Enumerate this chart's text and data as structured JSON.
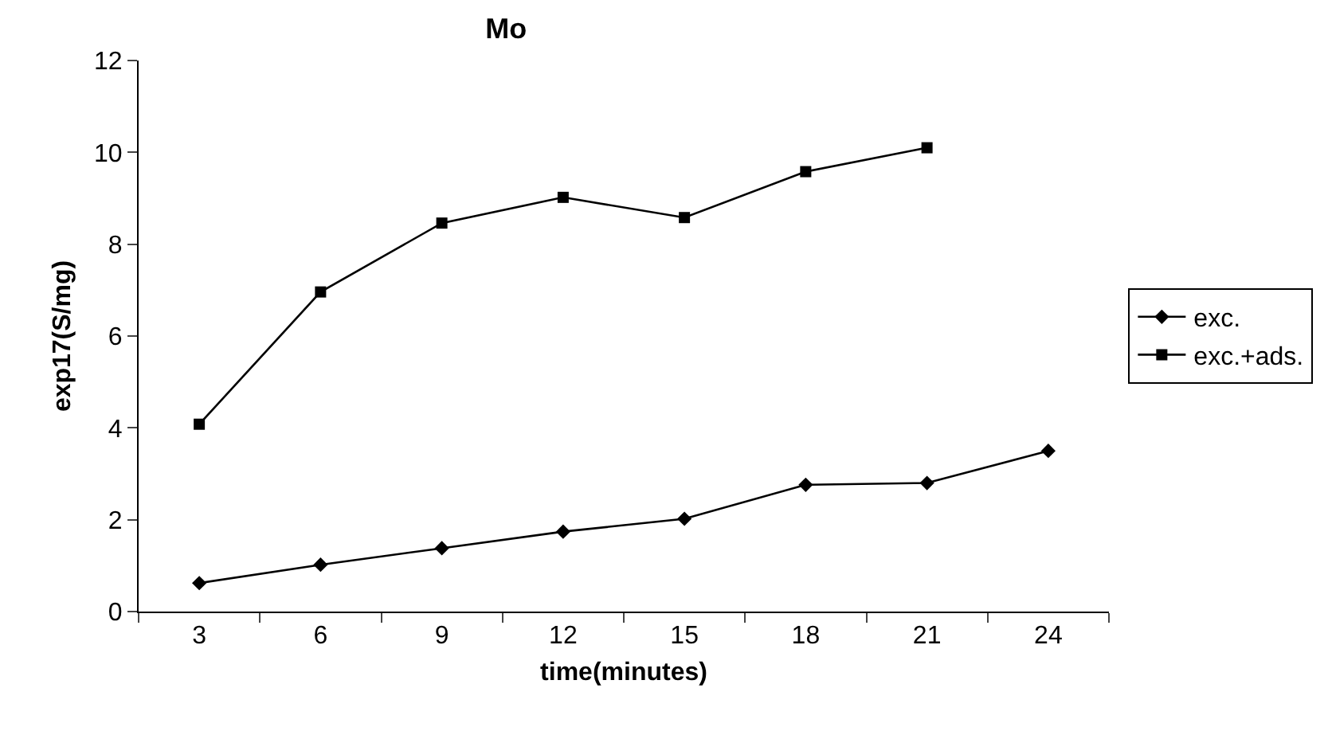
{
  "chart_data": {
    "type": "line",
    "title": "Mo",
    "xlabel": "time(minutes)",
    "ylabel": "exp17(S/mg)",
    "categories": [
      "3",
      "6",
      "9",
      "12",
      "15",
      "18",
      "21",
      "24"
    ],
    "series": [
      {
        "name": "exc.",
        "color": "#000000",
        "marker": "diamond",
        "values": [
          0.62,
          1.02,
          1.38,
          1.74,
          2.02,
          2.76,
          2.8,
          3.5
        ]
      },
      {
        "name": "exc.+ads.",
        "color": "#000000",
        "marker": "square",
        "values": [
          4.08,
          6.96,
          8.46,
          9.02,
          8.58,
          9.58,
          10.1,
          null
        ]
      }
    ],
    "ylim": [
      0,
      12
    ],
    "yticks": [
      0,
      2,
      4,
      6,
      8,
      10,
      12
    ],
    "grid": false,
    "legend": "right",
    "line_style": "solid"
  }
}
